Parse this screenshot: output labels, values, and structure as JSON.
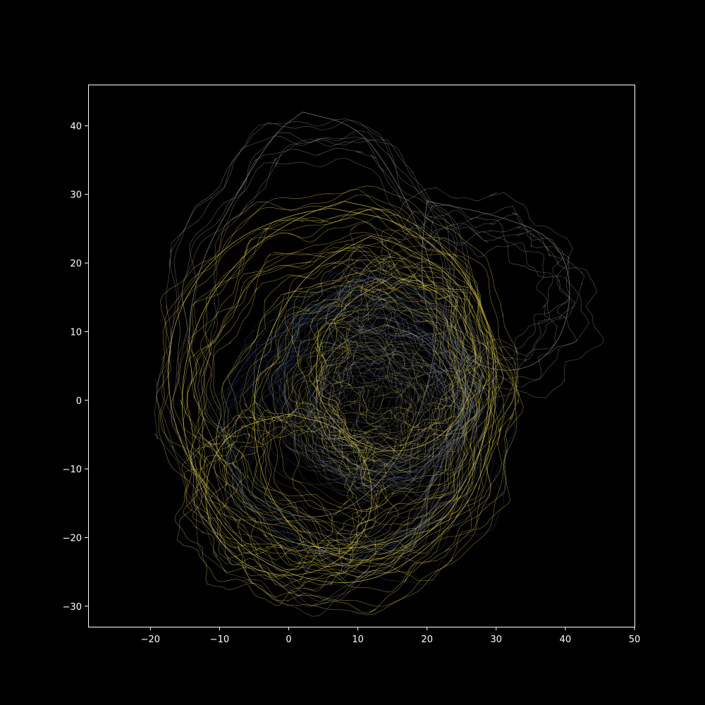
{
  "chart_data": {
    "type": "line",
    "title": "",
    "xlabel": "",
    "ylabel": "",
    "xlim": [
      -29,
      50
    ],
    "ylim": [
      -33,
      46
    ],
    "x_ticks": [
      -20,
      -10,
      0,
      10,
      20,
      30,
      40,
      50
    ],
    "y_ticks": [
      -30,
      -20,
      -10,
      0,
      10,
      20,
      30,
      40
    ],
    "x_tick_labels": [
      "−20",
      "−10",
      "0",
      "10",
      "20",
      "30",
      "40",
      "50"
    ],
    "y_tick_labels": [
      "−30",
      "−20",
      "−10",
      "0",
      "10",
      "20",
      "30",
      "40"
    ],
    "grid": false,
    "legend": "none",
    "colors": {
      "background": "#000000",
      "axes": "#ffffff",
      "yellow": "#e8d44d",
      "gray": "#9a9a8c",
      "blue": "#3b5282"
    },
    "series": [
      {
        "color": "yellow",
        "cx": 12,
        "cy": -3,
        "rx": 17,
        "ry": 21,
        "points": [
          [
            12,
            24
          ],
          [
            18,
            22
          ],
          [
            25,
            17
          ],
          [
            29,
            8
          ],
          [
            29,
            -3
          ],
          [
            26,
            -13
          ],
          [
            20,
            -20
          ],
          [
            12,
            -24
          ],
          [
            4,
            -22
          ],
          [
            -2,
            -16
          ],
          [
            -5,
            -7
          ],
          [
            -5,
            3
          ],
          [
            -2,
            12
          ],
          [
            4,
            20
          ],
          [
            12,
            24
          ]
        ]
      },
      {
        "color": "yellow",
        "cx": 8,
        "cy": -2,
        "rx": 22,
        "ry": 26,
        "points": [
          [
            8,
            29
          ],
          [
            17,
            27
          ],
          [
            25,
            20
          ],
          [
            30,
            9
          ],
          [
            30,
            -3
          ],
          [
            27,
            -14
          ],
          [
            20,
            -22
          ],
          [
            11,
            -27
          ],
          [
            1,
            -26
          ],
          [
            -8,
            -21
          ],
          [
            -14,
            -11
          ],
          [
            -16,
            1
          ],
          [
            -13,
            13
          ],
          [
            -6,
            22
          ],
          [
            2,
            27
          ],
          [
            8,
            29
          ]
        ]
      },
      {
        "color": "yellow",
        "cx": 6,
        "cy": 3,
        "rx": 24,
        "ry": 25,
        "points": [
          [
            6,
            28
          ],
          [
            17,
            26
          ],
          [
            26,
            18
          ],
          [
            30,
            8
          ],
          [
            29,
            -5
          ],
          [
            24,
            -15
          ],
          [
            15,
            -21
          ],
          [
            4,
            -22
          ],
          [
            -7,
            -18
          ],
          [
            -15,
            -9
          ],
          [
            -18,
            3
          ],
          [
            -16,
            14
          ],
          [
            -9,
            23
          ],
          [
            0,
            27
          ],
          [
            6,
            28
          ]
        ]
      },
      {
        "color": "gray",
        "cx": 5,
        "cy": 5,
        "rx": 22,
        "ry": 35,
        "points": [
          [
            2,
            42
          ],
          [
            10,
            40
          ],
          [
            15,
            33
          ],
          [
            19,
            25
          ],
          [
            22,
            14
          ],
          [
            20,
            0
          ],
          [
            14,
            -12
          ],
          [
            5,
            -18
          ],
          [
            -5,
            -15
          ],
          [
            -12,
            -5
          ],
          [
            -15,
            8
          ],
          [
            -13,
            20
          ],
          [
            -7,
            31
          ],
          [
            -2,
            39
          ],
          [
            2,
            42
          ]
        ]
      },
      {
        "color": "gray",
        "cx": 25,
        "cy": 15,
        "rx": 16,
        "ry": 12,
        "points": [
          [
            20,
            29
          ],
          [
            30,
            27
          ],
          [
            38,
            24
          ],
          [
            41,
            18
          ],
          [
            40,
            10
          ],
          [
            36,
            5
          ],
          [
            30,
            4
          ],
          [
            24,
            7
          ],
          [
            20,
            12
          ],
          [
            19,
            20
          ],
          [
            20,
            29
          ]
        ]
      },
      {
        "color": "blue",
        "cx": 12,
        "cy": 3,
        "rx": 14,
        "ry": 15,
        "points": [
          [
            12,
            18
          ],
          [
            19,
            16
          ],
          [
            24,
            10
          ],
          [
            26,
            2
          ],
          [
            24,
            -6
          ],
          [
            18,
            -11
          ],
          [
            11,
            -12
          ],
          [
            4,
            -9
          ],
          [
            0,
            -3
          ],
          [
            -1,
            5
          ],
          [
            2,
            12
          ],
          [
            7,
            16
          ],
          [
            12,
            18
          ]
        ]
      },
      {
        "color": "blue",
        "cx": 9,
        "cy": -5,
        "rx": 19,
        "ry": 18,
        "points": [
          [
            9,
            13
          ],
          [
            18,
            11
          ],
          [
            25,
            4
          ],
          [
            28,
            -5
          ],
          [
            25,
            -14
          ],
          [
            18,
            -20
          ],
          [
            9,
            -23
          ],
          [
            0,
            -21
          ],
          [
            -7,
            -14
          ],
          [
            -10,
            -5
          ],
          [
            -8,
            4
          ],
          [
            -2,
            10
          ],
          [
            9,
            13
          ]
        ]
      },
      {
        "color": "gray",
        "cx": 14,
        "cy": 0,
        "rx": 10,
        "ry": 11,
        "points": [
          [
            14,
            11
          ],
          [
            20,
            9
          ],
          [
            24,
            3
          ],
          [
            24,
            -4
          ],
          [
            20,
            -9
          ],
          [
            14,
            -11
          ],
          [
            8,
            -9
          ],
          [
            4,
            -3
          ],
          [
            4,
            4
          ],
          [
            8,
            9
          ],
          [
            14,
            11
          ]
        ]
      },
      {
        "color": "yellow",
        "cx": 15,
        "cy": 5,
        "rx": 12,
        "ry": 13,
        "points": [
          [
            15,
            18
          ],
          [
            22,
            16
          ],
          [
            27,
            10
          ],
          [
            27,
            2
          ],
          [
            23,
            -5
          ],
          [
            16,
            -8
          ],
          [
            9,
            -6
          ],
          [
            4,
            0
          ],
          [
            4,
            8
          ],
          [
            8,
            14
          ],
          [
            15,
            18
          ]
        ]
      },
      {
        "color": "yellow",
        "cx": 0,
        "cy": -14,
        "rx": 13,
        "ry": 12,
        "points": [
          [
            0,
            -2
          ],
          [
            8,
            -4
          ],
          [
            12,
            -10
          ],
          [
            12,
            -18
          ],
          [
            7,
            -24
          ],
          [
            0,
            -26
          ],
          [
            -7,
            -24
          ],
          [
            -12,
            -18
          ],
          [
            -12,
            -10
          ],
          [
            -8,
            -4
          ],
          [
            0,
            -2
          ]
        ]
      }
    ]
  }
}
